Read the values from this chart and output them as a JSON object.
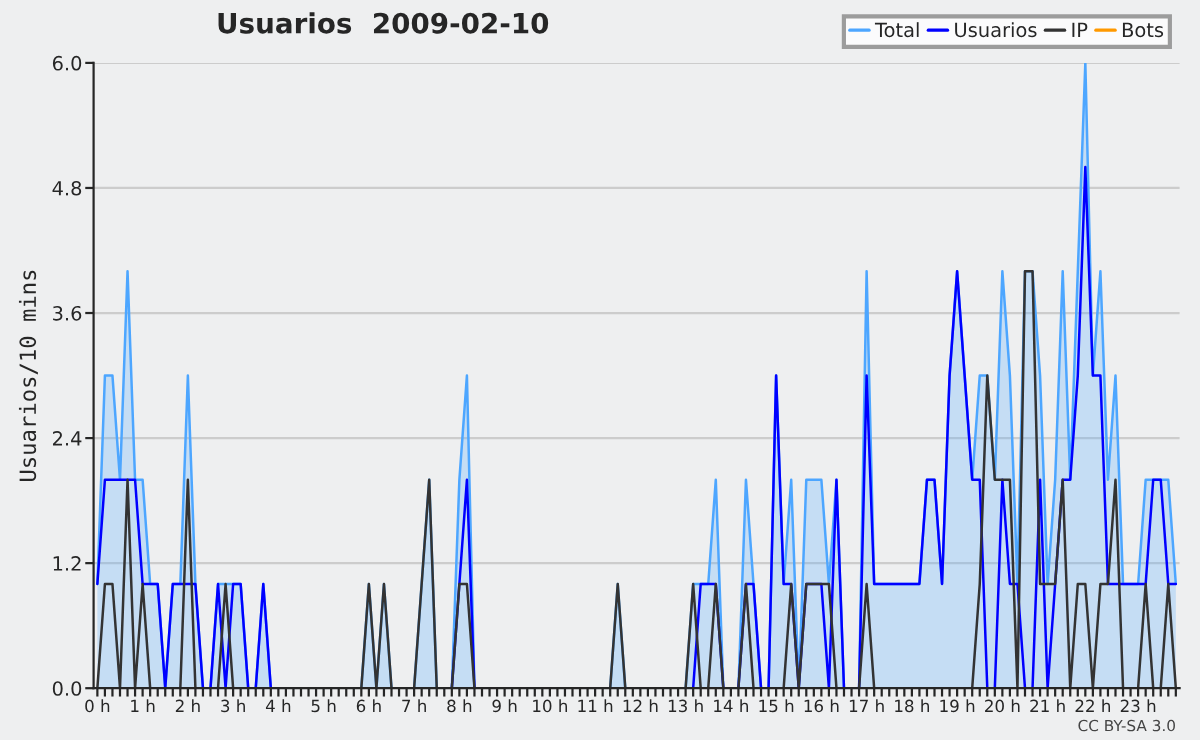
{
  "chart_data": {
    "type": "line",
    "title": "Usuarios  2009-02-10",
    "ylabel": "Usuarios/10 mins",
    "categories": [
      "0 h",
      null,
      null,
      null,
      null,
      null,
      "1 h",
      null,
      null,
      null,
      null,
      null,
      "2 h",
      null,
      null,
      null,
      null,
      null,
      "3 h",
      null,
      null,
      null,
      null,
      null,
      "4 h",
      null,
      null,
      null,
      null,
      null,
      "5 h",
      null,
      null,
      null,
      null,
      null,
      "6 h",
      null,
      null,
      null,
      null,
      null,
      "7 h",
      null,
      null,
      null,
      null,
      null,
      "8 h",
      null,
      null,
      null,
      null,
      null,
      "9 h",
      null,
      null,
      null,
      null,
      null,
      "10 h",
      null,
      null,
      null,
      null,
      null,
      "11 h",
      null,
      null,
      null,
      null,
      null,
      "12 h",
      null,
      null,
      null,
      null,
      null,
      "13 h",
      null,
      null,
      null,
      null,
      null,
      "14 h",
      null,
      null,
      null,
      null,
      null,
      "15 h",
      null,
      null,
      null,
      null,
      null,
      "16 h",
      null,
      null,
      null,
      null,
      null,
      "17 h",
      null,
      null,
      null,
      null,
      null,
      "18 h",
      null,
      null,
      null,
      null,
      null,
      "19 h",
      null,
      null,
      null,
      null,
      null,
      "20 h",
      null,
      null,
      null,
      null,
      null,
      "21 h",
      null,
      null,
      null,
      null,
      null,
      "22 h",
      null,
      null,
      null,
      null,
      null,
      "23 h",
      null,
      null,
      null,
      null,
      null
    ],
    "series": [
      {
        "name": "Total",
        "type": "area",
        "color": "#4da6ff",
        "values": [
          1,
          3,
          3,
          2,
          4,
          2,
          2,
          1,
          1,
          0,
          1,
          1,
          3,
          1,
          0,
          0,
          1,
          1,
          1,
          1,
          0,
          0,
          1,
          0,
          0,
          0,
          0,
          0,
          0,
          0,
          0,
          0,
          0,
          0,
          0,
          0,
          1,
          0,
          1,
          0,
          0,
          0,
          0,
          1,
          2,
          0,
          0,
          0,
          2,
          3,
          0,
          0,
          0,
          0,
          0,
          0,
          0,
          0,
          0,
          0,
          0,
          0,
          0,
          0,
          0,
          0,
          0,
          0,
          0,
          1,
          0,
          0,
          0,
          0,
          0,
          0,
          0,
          0,
          0,
          1,
          1,
          1,
          2,
          0,
          0,
          0,
          2,
          1,
          0,
          0,
          3,
          1,
          2,
          0,
          2,
          2,
          2,
          1,
          2,
          0,
          0,
          0,
          4,
          1,
          1,
          1,
          1,
          1,
          1,
          1,
          2,
          2,
          1,
          3,
          4,
          3,
          2,
          3,
          3,
          2,
          4,
          3,
          1,
          4,
          4,
          3,
          1,
          2,
          4,
          2,
          4,
          6,
          3,
          4,
          2,
          3,
          1,
          1,
          1,
          2,
          2,
          2,
          2,
          1
        ]
      },
      {
        "name": "Usuarios",
        "color": "#0000ff",
        "values": [
          1,
          2,
          2,
          2,
          2,
          2,
          1,
          1,
          1,
          0,
          1,
          1,
          1,
          1,
          0,
          0,
          1,
          0,
          1,
          1,
          0,
          0,
          1,
          0,
          0,
          0,
          0,
          0,
          0,
          0,
          0,
          0,
          0,
          0,
          0,
          0,
          0,
          0,
          0,
          0,
          0,
          0,
          0,
          0,
          0,
          0,
          0,
          0,
          1,
          2,
          0,
          0,
          0,
          0,
          0,
          0,
          0,
          0,
          0,
          0,
          0,
          0,
          0,
          0,
          0,
          0,
          0,
          0,
          0,
          0,
          0,
          0,
          0,
          0,
          0,
          0,
          0,
          0,
          0,
          0,
          1,
          1,
          1,
          0,
          0,
          0,
          1,
          1,
          0,
          0,
          3,
          1,
          1,
          0,
          1,
          1,
          1,
          0,
          2,
          0,
          0,
          0,
          3,
          1,
          1,
          1,
          1,
          1,
          1,
          1,
          2,
          2,
          1,
          3,
          4,
          3,
          2,
          2,
          0,
          0,
          2,
          1,
          1,
          0,
          0,
          2,
          0,
          1,
          2,
          2,
          3,
          5,
          3,
          3,
          1,
          1,
          1,
          1,
          1,
          1,
          2,
          2,
          1,
          1
        ]
      },
      {
        "name": "IP",
        "color": "#333333",
        "values": [
          0,
          1,
          1,
          0,
          2,
          0,
          1,
          0,
          0,
          0,
          0,
          0,
          2,
          0,
          0,
          0,
          0,
          1,
          0,
          0,
          0,
          0,
          0,
          0,
          0,
          0,
          0,
          0,
          0,
          0,
          0,
          0,
          0,
          0,
          0,
          0,
          1,
          0,
          1,
          0,
          0,
          0,
          0,
          1,
          2,
          0,
          0,
          0,
          1,
          1,
          0,
          0,
          0,
          0,
          0,
          0,
          0,
          0,
          0,
          0,
          0,
          0,
          0,
          0,
          0,
          0,
          0,
          0,
          0,
          1,
          0,
          0,
          0,
          0,
          0,
          0,
          0,
          0,
          0,
          1,
          0,
          0,
          1,
          0,
          0,
          0,
          1,
          0,
          0,
          0,
          0,
          0,
          1,
          0,
          1,
          1,
          1,
          1,
          0,
          0,
          0,
          0,
          1,
          0,
          0,
          0,
          0,
          0,
          0,
          0,
          0,
          0,
          0,
          0,
          0,
          0,
          0,
          1,
          3,
          2,
          2,
          2,
          0,
          4,
          4,
          1,
          1,
          1,
          2,
          0,
          1,
          1,
          0,
          1,
          1,
          2,
          0,
          0,
          0,
          1,
          0,
          0,
          1,
          0
        ]
      },
      {
        "name": "Bots",
        "color": "#ff9900",
        "values": [
          null,
          null,
          null,
          null,
          null,
          null,
          null,
          null,
          null,
          null,
          null,
          null,
          null,
          null,
          null,
          null,
          null,
          null,
          null,
          null,
          null,
          null,
          null,
          null,
          null,
          null,
          null,
          null,
          null,
          null,
          null,
          null,
          null,
          null,
          null,
          null,
          null,
          null,
          null,
          null,
          null,
          null,
          null,
          null,
          null,
          null,
          null,
          null,
          null,
          null,
          null,
          null,
          null,
          null,
          null,
          null,
          null,
          null,
          null,
          null,
          null,
          null,
          null,
          null,
          null,
          null,
          null,
          null,
          null,
          null,
          null,
          null,
          null,
          null,
          null,
          null,
          null,
          null,
          null,
          null,
          null,
          null,
          null,
          null,
          null,
          null,
          null,
          null,
          null,
          null,
          null,
          null,
          null,
          null,
          null,
          null,
          null,
          null,
          null,
          null,
          null,
          null,
          null,
          null,
          null,
          null,
          null,
          null,
          null,
          null,
          null,
          null,
          null,
          null,
          null,
          null,
          null,
          null,
          null,
          null,
          null,
          null,
          null,
          null,
          null,
          null,
          null,
          null,
          null,
          null,
          null,
          null,
          null,
          null,
          null,
          null,
          null,
          null,
          null,
          null,
          null,
          null,
          null,
          null
        ]
      }
    ],
    "ylim": [
      0,
      6
    ],
    "yticks": [
      {
        "value": 0,
        "label": "0.0"
      },
      {
        "value": 1.2,
        "label": "1.2"
      },
      {
        "value": 2.4,
        "label": "2.4"
      },
      {
        "value": 3.6,
        "label": "3.6"
      },
      {
        "value": 4.8,
        "label": "4.8"
      },
      {
        "value": 6,
        "label": "6.0"
      }
    ],
    "grid": "y",
    "legend": "top right",
    "marker": "none",
    "line_style": "solid",
    "annotations": [
      "CC BY-SA 3.0"
    ]
  }
}
